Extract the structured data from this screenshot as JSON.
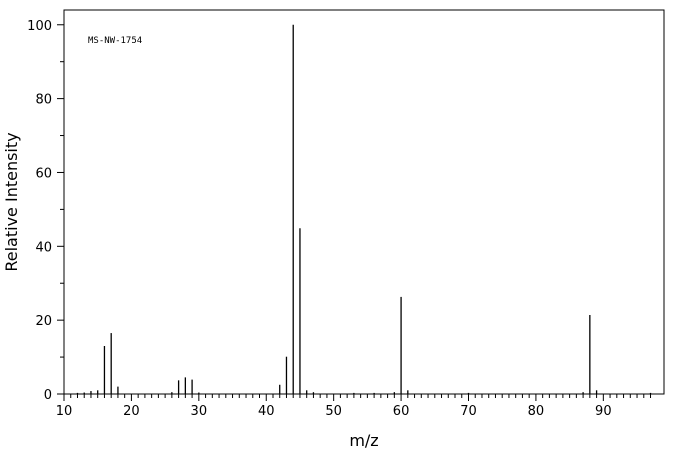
{
  "chart_data": {
    "type": "bar",
    "annotation": "MS-NW-1754",
    "xlabel": "m/z",
    "ylabel": "Relative Intensity",
    "xlim": [
      10,
      99
    ],
    "ylim": [
      0,
      104
    ],
    "x_ticks": [
      10,
      20,
      30,
      40,
      50,
      60,
      70,
      80,
      90
    ],
    "y_ticks": [
      0,
      20,
      40,
      60,
      80,
      100
    ],
    "peaks": [
      {
        "mz": 12,
        "intensity": 0.3
      },
      {
        "mz": 13,
        "intensity": 0.4
      },
      {
        "mz": 14,
        "intensity": 0.8
      },
      {
        "mz": 15,
        "intensity": 1.0
      },
      {
        "mz": 16,
        "intensity": 13.0
      },
      {
        "mz": 17,
        "intensity": 16.5
      },
      {
        "mz": 18,
        "intensity": 2.0
      },
      {
        "mz": 26,
        "intensity": 0.5
      },
      {
        "mz": 27,
        "intensity": 3.7
      },
      {
        "mz": 28,
        "intensity": 4.5
      },
      {
        "mz": 29,
        "intensity": 3.9
      },
      {
        "mz": 30,
        "intensity": 0.4
      },
      {
        "mz": 42,
        "intensity": 2.5
      },
      {
        "mz": 43,
        "intensity": 10.1
      },
      {
        "mz": 44,
        "intensity": 100.0
      },
      {
        "mz": 45,
        "intensity": 44.9
      },
      {
        "mz": 46,
        "intensity": 1.0
      },
      {
        "mz": 47,
        "intensity": 0.5
      },
      {
        "mz": 53,
        "intensity": 0.3
      },
      {
        "mz": 56,
        "intensity": 0.3
      },
      {
        "mz": 59,
        "intensity": 0.5
      },
      {
        "mz": 60,
        "intensity": 26.3
      },
      {
        "mz": 61,
        "intensity": 1.0
      },
      {
        "mz": 70,
        "intensity": 0.3
      },
      {
        "mz": 87,
        "intensity": 0.5
      },
      {
        "mz": 88,
        "intensity": 21.4
      },
      {
        "mz": 89,
        "intensity": 1.0
      },
      {
        "mz": 97,
        "intensity": 0.3
      }
    ]
  }
}
